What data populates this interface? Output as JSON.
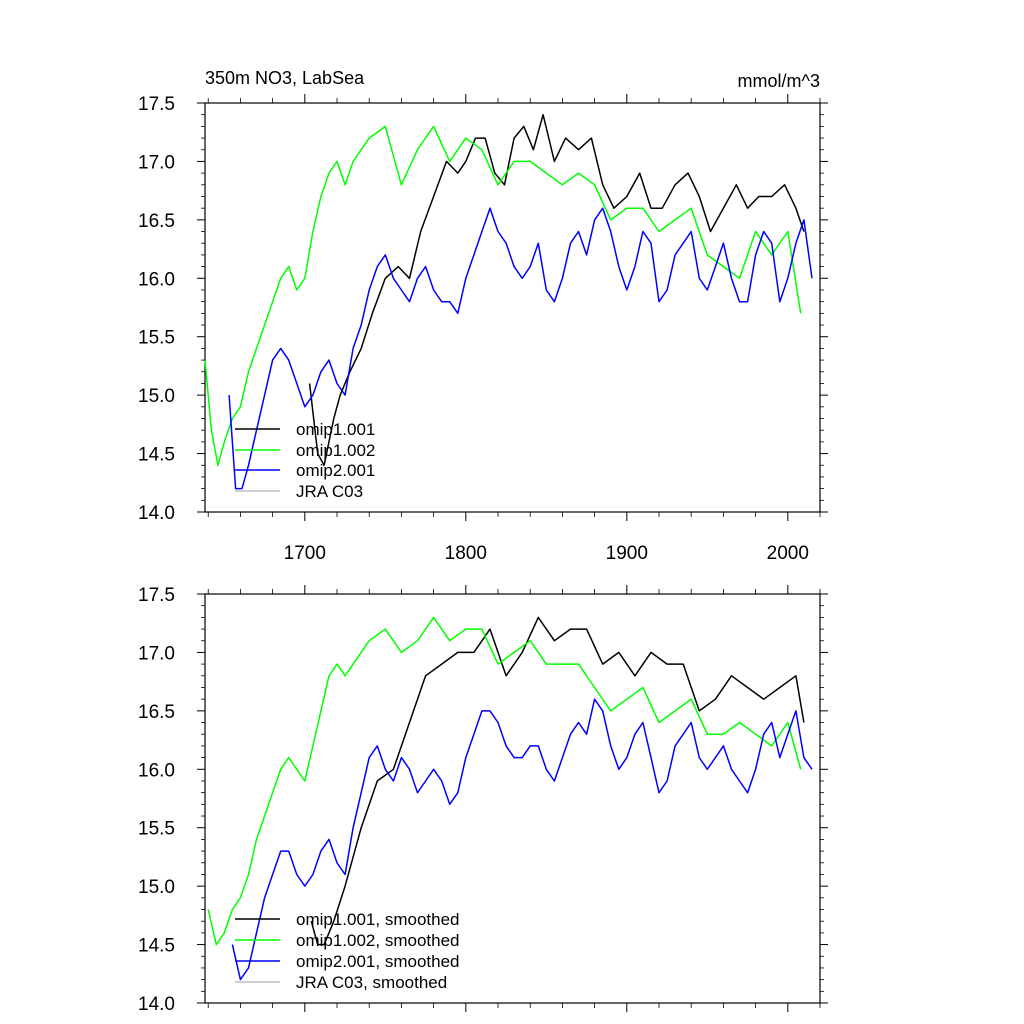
{
  "chart_data": [
    {
      "type": "line",
      "title": "350m NO3, LabSea",
      "units": "mmol/m^3",
      "xlabel": "",
      "ylabel": "",
      "xlim": [
        1638,
        2020
      ],
      "ylim": [
        14.0,
        17.5
      ],
      "x_ticks": [
        1700,
        1800,
        1900,
        2000
      ],
      "x_tick_labels": [
        "1700",
        "1800",
        "1900",
        "2000"
      ],
      "y_ticks": [
        14.0,
        14.5,
        15.0,
        15.5,
        16.0,
        16.5,
        17.0,
        17.5
      ],
      "y_tick_labels": [
        "14.0",
        "14.5",
        "15.0",
        "15.5",
        "16.0",
        "16.5",
        "17.0",
        "17.5"
      ],
      "legend": "bottom-left",
      "series": [
        {
          "name": "omip1.001",
          "color": "#000000",
          "x": [
            1703,
            1708,
            1712,
            1718,
            1722,
            1728,
            1735,
            1742,
            1750,
            1758,
            1765,
            1772,
            1780,
            1788,
            1795,
            1800,
            1806,
            1812,
            1818,
            1824,
            1830,
            1836,
            1842,
            1848,
            1855,
            1862,
            1870,
            1878,
            1885,
            1892,
            1900,
            1908,
            1915,
            1922,
            1930,
            1938,
            1945,
            1952,
            1960,
            1968,
            1975,
            1982,
            1990,
            1998,
            2005,
            2010
          ],
          "y": [
            15.1,
            14.5,
            14.4,
            14.8,
            15.0,
            15.2,
            15.4,
            15.7,
            16.0,
            16.1,
            16.0,
            16.4,
            16.7,
            17.0,
            16.9,
            17.0,
            17.2,
            17.2,
            16.9,
            16.8,
            17.2,
            17.3,
            17.1,
            17.4,
            17.0,
            17.2,
            17.1,
            17.2,
            16.8,
            16.6,
            16.7,
            16.9,
            16.6,
            16.6,
            16.8,
            16.9,
            16.7,
            16.4,
            16.6,
            16.8,
            16.6,
            16.7,
            16.7,
            16.8,
            16.6,
            16.4
          ]
        },
        {
          "name": "omip1.002",
          "color": "#00ff00",
          "x": [
            1638,
            1642,
            1646,
            1650,
            1655,
            1660,
            1665,
            1670,
            1675,
            1680,
            1685,
            1690,
            1695,
            1700,
            1705,
            1710,
            1715,
            1720,
            1725,
            1730,
            1740,
            1750,
            1760,
            1770,
            1780,
            1790,
            1800,
            1810,
            1820,
            1830,
            1840,
            1850,
            1860,
            1870,
            1880,
            1890,
            1900,
            1910,
            1920,
            1930,
            1940,
            1950,
            1960,
            1970,
            1980,
            1990,
            2000,
            2008
          ],
          "y": [
            15.3,
            14.7,
            14.4,
            14.6,
            14.8,
            14.9,
            15.2,
            15.4,
            15.6,
            15.8,
            16.0,
            16.1,
            15.9,
            16.0,
            16.4,
            16.7,
            16.9,
            17.0,
            16.8,
            17.0,
            17.2,
            17.3,
            16.8,
            17.1,
            17.3,
            17.0,
            17.2,
            17.1,
            16.8,
            17.0,
            17.0,
            16.9,
            16.8,
            16.9,
            16.8,
            16.5,
            16.6,
            16.6,
            16.4,
            16.5,
            16.6,
            16.2,
            16.1,
            16.0,
            16.4,
            16.2,
            16.4,
            15.7
          ]
        },
        {
          "name": "omip2.001",
          "color": "#0000ff",
          "x": [
            1653,
            1657,
            1661,
            1665,
            1670,
            1675,
            1680,
            1685,
            1690,
            1695,
            1700,
            1705,
            1710,
            1715,
            1720,
            1725,
            1730,
            1735,
            1740,
            1745,
            1750,
            1755,
            1760,
            1765,
            1770,
            1775,
            1780,
            1785,
            1790,
            1795,
            1800,
            1805,
            1810,
            1815,
            1820,
            1825,
            1830,
            1835,
            1840,
            1845,
            1850,
            1855,
            1860,
            1865,
            1870,
            1875,
            1880,
            1885,
            1890,
            1895,
            1900,
            1905,
            1910,
            1915,
            1920,
            1925,
            1930,
            1935,
            1940,
            1945,
            1950,
            1955,
            1960,
            1965,
            1970,
            1975,
            1980,
            1985,
            1990,
            1995,
            2000,
            2005,
            2010,
            2015
          ],
          "y": [
            15.0,
            14.2,
            14.2,
            14.4,
            14.7,
            15.0,
            15.3,
            15.4,
            15.3,
            15.1,
            14.9,
            15.0,
            15.2,
            15.3,
            15.1,
            15.0,
            15.4,
            15.6,
            15.9,
            16.1,
            16.2,
            16.0,
            15.9,
            15.8,
            16.0,
            16.1,
            15.9,
            15.8,
            15.8,
            15.7,
            16.0,
            16.2,
            16.4,
            16.6,
            16.4,
            16.3,
            16.1,
            16.0,
            16.1,
            16.3,
            15.9,
            15.8,
            16.0,
            16.3,
            16.4,
            16.2,
            16.5,
            16.6,
            16.4,
            16.1,
            15.9,
            16.1,
            16.4,
            16.3,
            15.8,
            15.9,
            16.2,
            16.3,
            16.4,
            16.0,
            15.9,
            16.1,
            16.3,
            16.0,
            15.8,
            15.8,
            16.2,
            16.4,
            16.3,
            15.8,
            16.0,
            16.3,
            16.5,
            16.0
          ]
        },
        {
          "name": "JRA C03",
          "color": "#c0c0c0",
          "x": [],
          "y": []
        }
      ]
    },
    {
      "type": "line",
      "title": "",
      "xlabel": "",
      "ylabel": "",
      "xlim": [
        1638,
        2020
      ],
      "ylim": [
        14.0,
        17.5
      ],
      "x_ticks": [
        1700,
        1800,
        1900,
        2000
      ],
      "y_ticks": [
        14.0,
        14.5,
        15.0,
        15.5,
        16.0,
        16.5,
        17.0,
        17.5
      ],
      "y_tick_labels": [
        "14.0",
        "14.5",
        "15.0",
        "15.5",
        "16.0",
        "16.5",
        "17.0",
        "17.5"
      ],
      "legend": "bottom-left",
      "series": [
        {
          "name": "omip1.001, smoothed",
          "color": "#000000",
          "x": [
            1704,
            1708,
            1712,
            1718,
            1725,
            1735,
            1745,
            1755,
            1765,
            1775,
            1785,
            1795,
            1805,
            1815,
            1825,
            1835,
            1845,
            1855,
            1865,
            1875,
            1885,
            1895,
            1905,
            1915,
            1925,
            1935,
            1945,
            1955,
            1965,
            1975,
            1985,
            1995,
            2005,
            2010
          ],
          "y": [
            14.7,
            14.5,
            14.5,
            14.7,
            15.0,
            15.5,
            15.9,
            16.0,
            16.4,
            16.8,
            16.9,
            17.0,
            17.0,
            17.2,
            16.8,
            17.0,
            17.3,
            17.1,
            17.2,
            17.2,
            16.9,
            17.0,
            16.8,
            17.0,
            16.9,
            16.9,
            16.5,
            16.6,
            16.8,
            16.7,
            16.6,
            16.7,
            16.8,
            16.4
          ]
        },
        {
          "name": "omip1.002, smoothed",
          "color": "#00ff00",
          "x": [
            1640,
            1645,
            1650,
            1655,
            1660,
            1665,
            1670,
            1675,
            1680,
            1685,
            1690,
            1695,
            1700,
            1705,
            1710,
            1715,
            1720,
            1725,
            1730,
            1740,
            1750,
            1760,
            1770,
            1780,
            1790,
            1800,
            1810,
            1820,
            1830,
            1840,
            1850,
            1860,
            1870,
            1880,
            1890,
            1900,
            1910,
            1920,
            1930,
            1940,
            1950,
            1960,
            1970,
            1980,
            1990,
            2000,
            2008
          ],
          "y": [
            14.8,
            14.5,
            14.6,
            14.8,
            14.9,
            15.1,
            15.4,
            15.6,
            15.8,
            16.0,
            16.1,
            16.0,
            15.9,
            16.2,
            16.5,
            16.8,
            16.9,
            16.8,
            16.9,
            17.1,
            17.2,
            17.0,
            17.1,
            17.3,
            17.1,
            17.2,
            17.2,
            16.9,
            17.0,
            17.1,
            16.9,
            16.9,
            16.9,
            16.7,
            16.5,
            16.6,
            16.7,
            16.4,
            16.5,
            16.6,
            16.3,
            16.3,
            16.4,
            16.3,
            16.2,
            16.4,
            16.0
          ]
        },
        {
          "name": "omip2.001, smoothed",
          "color": "#0000ff",
          "x": [
            1655,
            1660,
            1665,
            1670,
            1675,
            1680,
            1685,
            1690,
            1695,
            1700,
            1705,
            1710,
            1715,
            1720,
            1725,
            1730,
            1735,
            1740,
            1745,
            1750,
            1755,
            1760,
            1765,
            1770,
            1775,
            1780,
            1785,
            1790,
            1795,
            1800,
            1805,
            1810,
            1815,
            1820,
            1825,
            1830,
            1835,
            1840,
            1845,
            1850,
            1855,
            1860,
            1865,
            1870,
            1875,
            1880,
            1885,
            1890,
            1895,
            1900,
            1905,
            1910,
            1915,
            1920,
            1925,
            1930,
            1935,
            1940,
            1945,
            1950,
            1955,
            1960,
            1965,
            1970,
            1975,
            1980,
            1985,
            1990,
            1995,
            2000,
            2005,
            2010,
            2015
          ],
          "y": [
            14.5,
            14.2,
            14.3,
            14.6,
            14.9,
            15.1,
            15.3,
            15.3,
            15.1,
            15.0,
            15.1,
            15.3,
            15.4,
            15.2,
            15.1,
            15.5,
            15.8,
            16.1,
            16.2,
            16.0,
            15.9,
            16.1,
            16.0,
            15.8,
            15.9,
            16.0,
            15.9,
            15.7,
            15.8,
            16.1,
            16.3,
            16.5,
            16.5,
            16.4,
            16.2,
            16.1,
            16.1,
            16.2,
            16.2,
            16.0,
            15.9,
            16.1,
            16.3,
            16.4,
            16.3,
            16.6,
            16.5,
            16.2,
            16.0,
            16.1,
            16.3,
            16.4,
            16.1,
            15.8,
            15.9,
            16.2,
            16.3,
            16.4,
            16.1,
            16.0,
            16.1,
            16.2,
            16.0,
            15.9,
            15.8,
            16.0,
            16.3,
            16.4,
            16.1,
            16.3,
            16.5,
            16.1,
            16.0
          ]
        },
        {
          "name": "JRA C03, smoothed",
          "color": "#c0c0c0",
          "x": [],
          "y": []
        }
      ]
    }
  ]
}
